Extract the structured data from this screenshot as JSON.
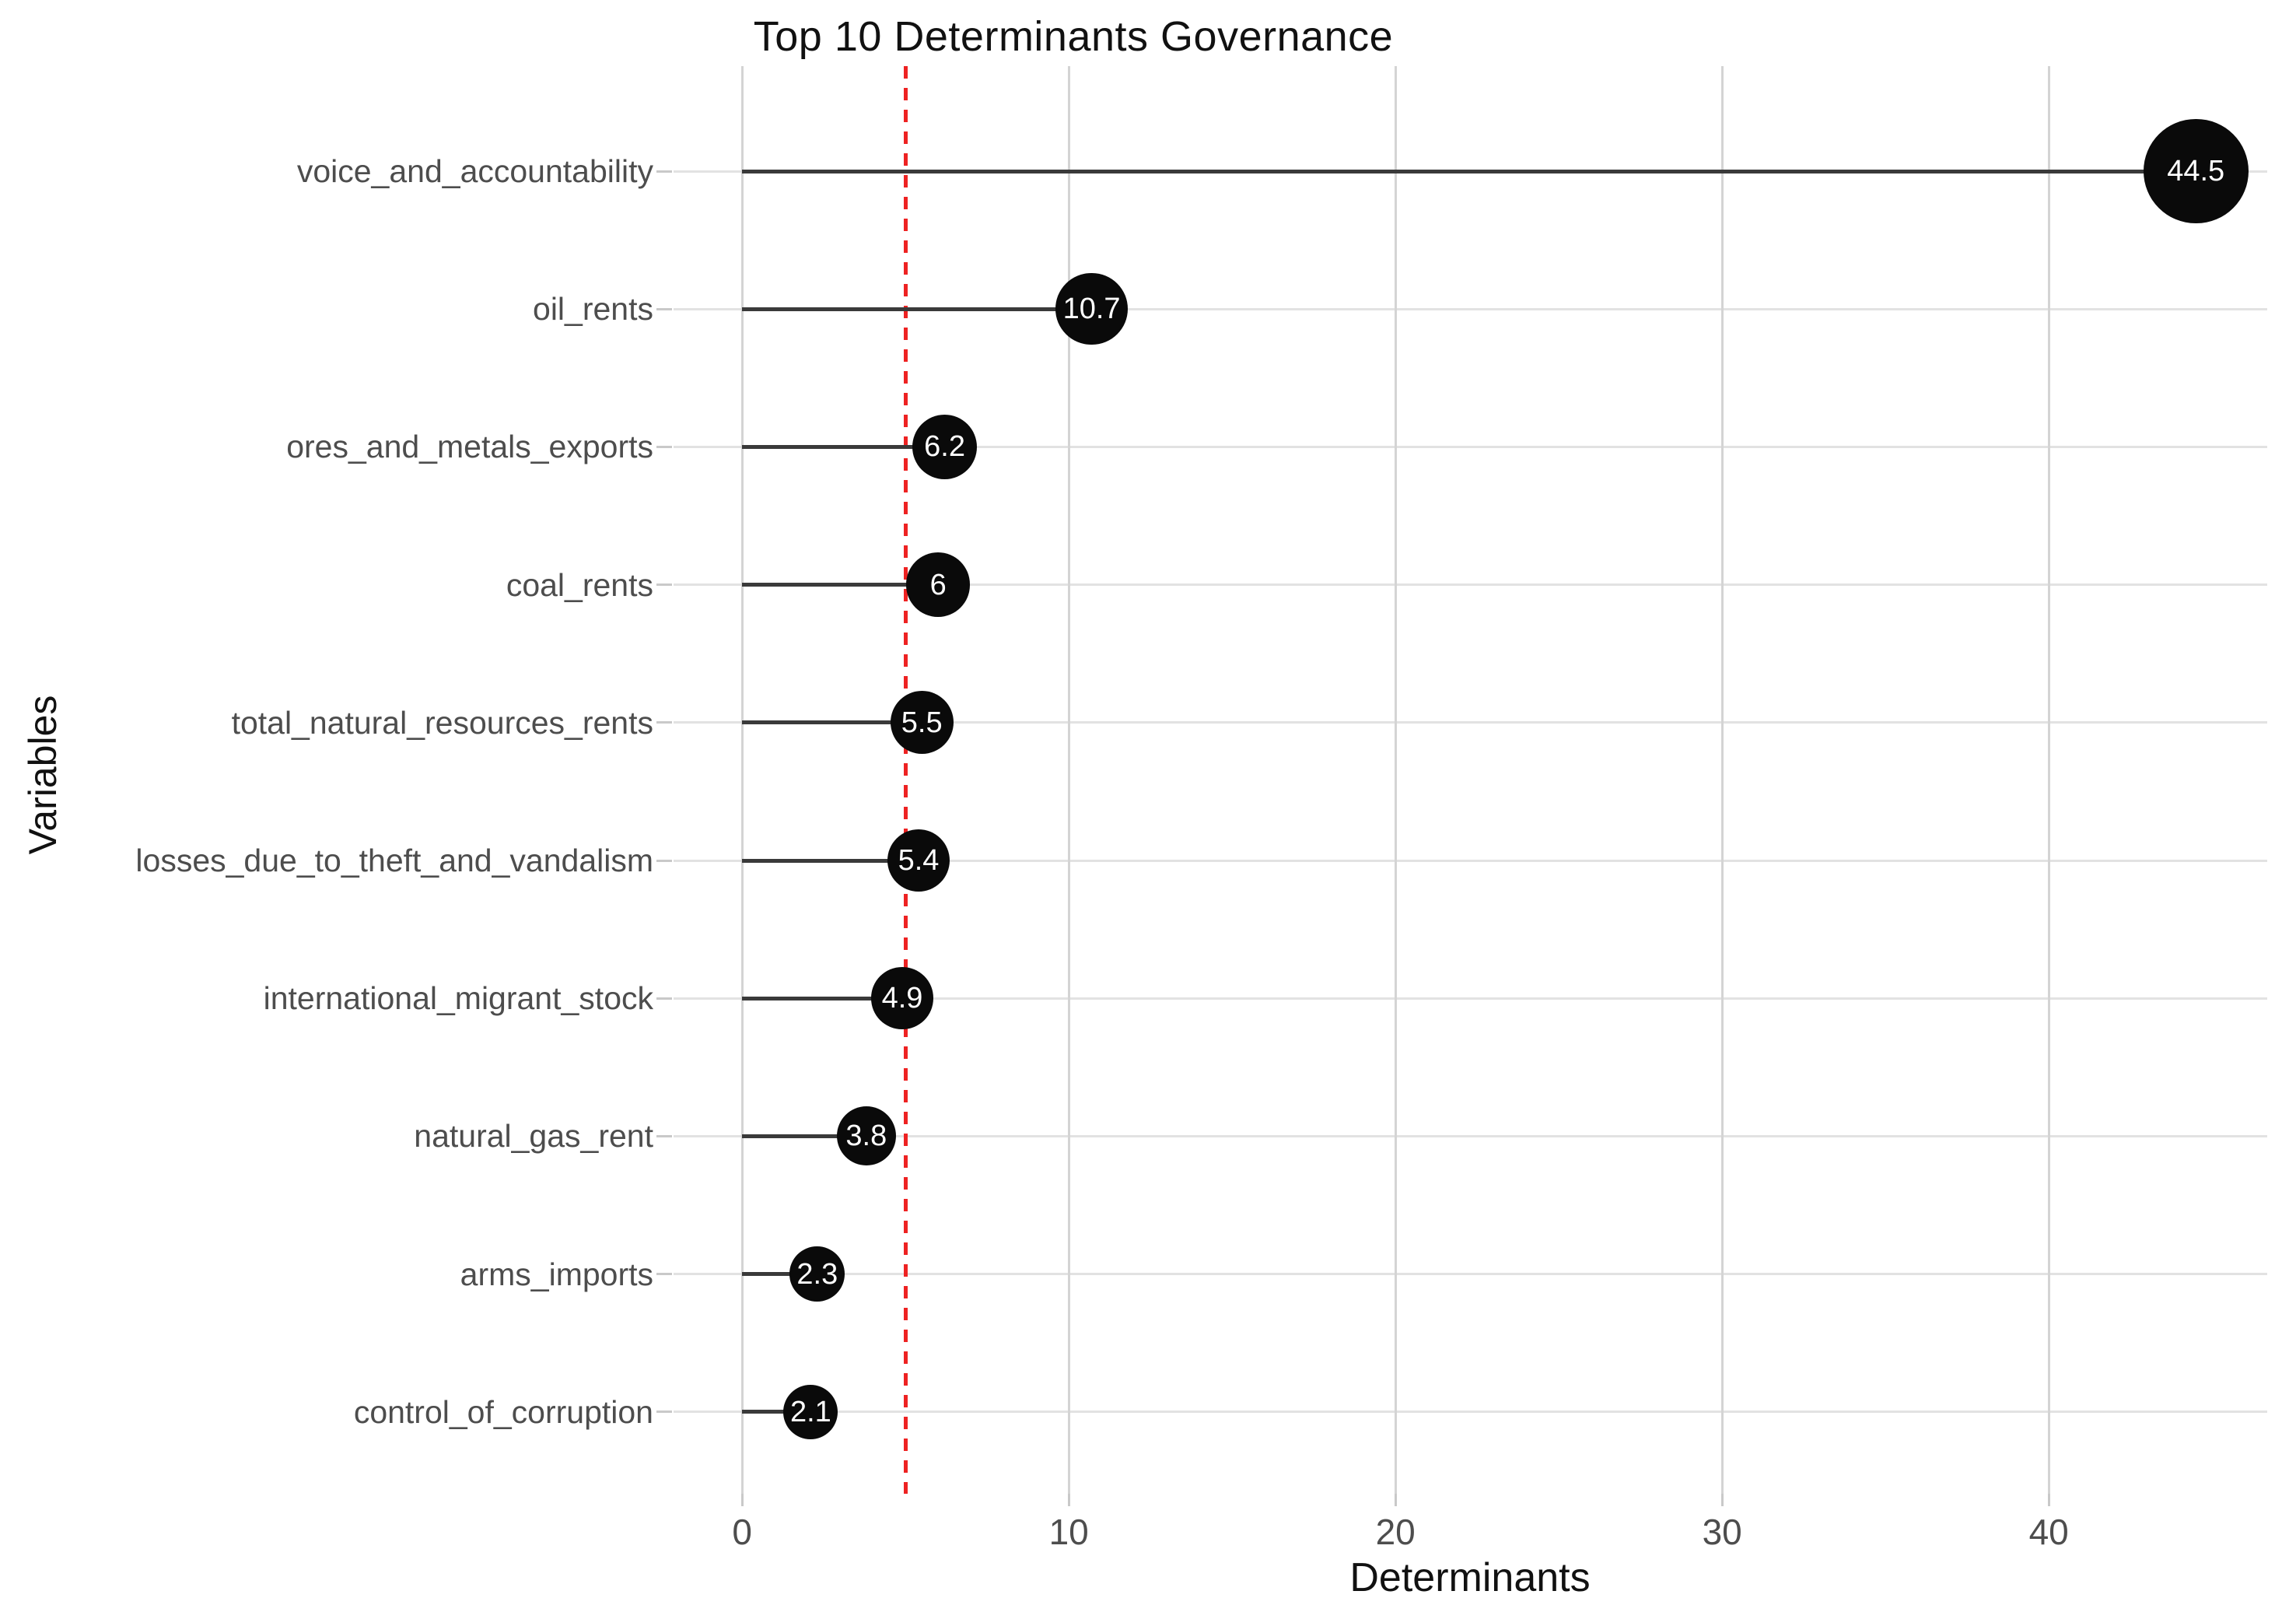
{
  "chart_data": {
    "type": "scatter",
    "variant": "lollipop",
    "title": "Top 10 Determinants Governance",
    "xlabel": "Determinants",
    "ylabel": "Variables",
    "categories": [
      "voice_and_accountability",
      "oil_rents",
      "ores_and_metals_exports",
      "coal_rents",
      "total_natural_resources_rents",
      "losses_due_to_theft_and_vandalism",
      "international_migrant_stock",
      "natural_gas_rent",
      "arms_imports",
      "control_of_corruption"
    ],
    "values": [
      44.5,
      10.7,
      6.2,
      6,
      5.5,
      5.4,
      4.9,
      3.8,
      2.3,
      2.1
    ],
    "point_labels": [
      "44.5",
      "10.7",
      "6.2",
      "6",
      "5.5",
      "5.4",
      "4.9",
      "3.8",
      "2.3",
      "2.1"
    ],
    "x_ticks": [
      0,
      10,
      20,
      30,
      40
    ],
    "xlim": [
      -2.1,
      46.7
    ],
    "reference_line_x": 5,
    "grid": true,
    "legend": false,
    "colors": {
      "background": "#ffffff",
      "point_fill": "#0a0a0a",
      "point_label": "#ffffff",
      "stem": "#3a3a3a",
      "grid_major_v": "#d4d4d4",
      "grid_major_h": "#e2e2e2",
      "tick_mark": "#c9c9c9",
      "reference_line": "#ee2222",
      "tick_text": "#4d4d4d",
      "category_text": "#4d4d4d",
      "title_text": "#111111"
    }
  }
}
